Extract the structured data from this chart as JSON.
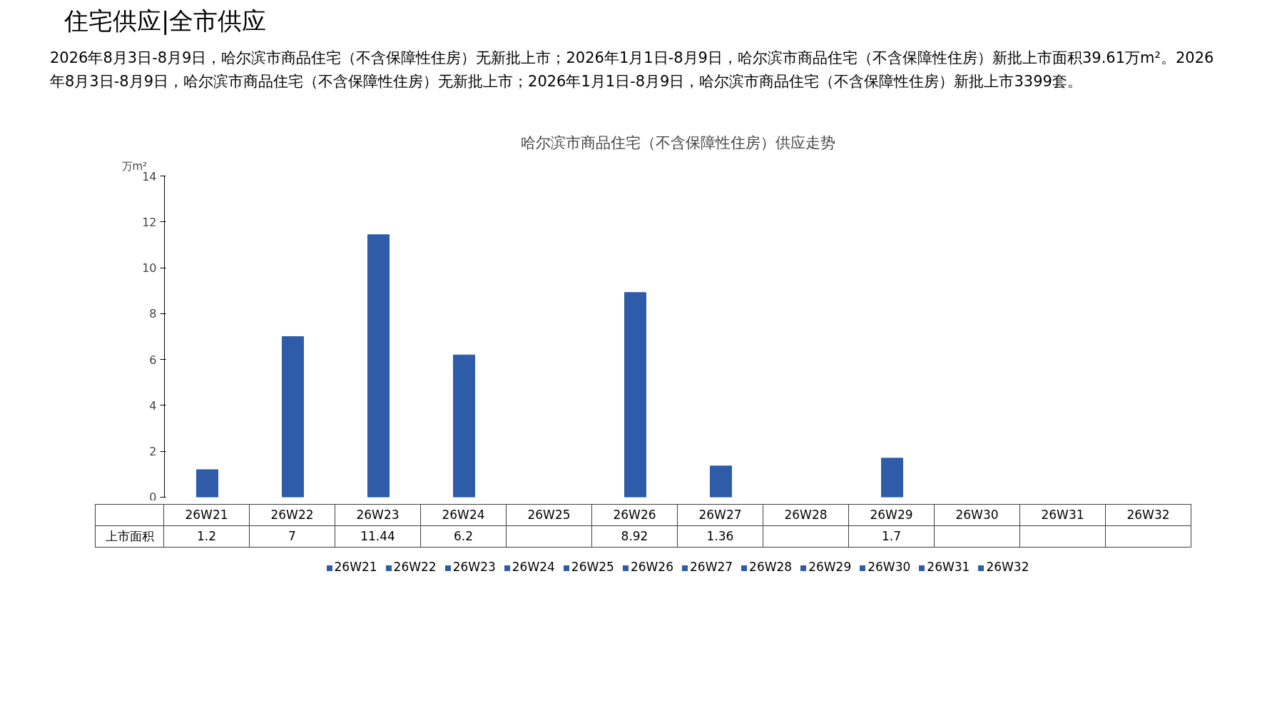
{
  "chart_data": {
    "type": "bar",
    "title": "哈尔滨市商品住宅（不含保障性住房）供应走势",
    "ylabel": "万m²",
    "categories": [
      "26W21",
      "26W22",
      "26W23",
      "26W24",
      "26W25",
      "26W26",
      "26W27",
      "26W28",
      "26W29",
      "26W30",
      "26W31",
      "26W32"
    ],
    "series": [
      {
        "name": "上市面积",
        "color": "#2e5ca8",
        "values": [
          1.2,
          7,
          11.44,
          6.2,
          null,
          8.92,
          1.36,
          null,
          1.7,
          null,
          null,
          null
        ]
      }
    ],
    "ylim": [
      0,
      14
    ],
    "yticks": [
      0,
      2,
      4,
      6,
      8,
      10,
      12,
      14
    ],
    "grid": false,
    "legend": "bottom",
    "data_labels": true,
    "annotations": [
      "住宅供应|全市供应",
      "2026年8月3日-8月9日，哈尔滨市商品住宅（不含保障性住房）无新批上市；2026年1月1日-8月9日，哈尔滨市商品住宅（不含保障性住房）新批上市面积39.61万m²。2026年8月3日-8月9日，哈尔滨市商品住宅（不含保障性住房）无新批上市；2026年1月1日-8月9日，哈尔滨市商品住宅（不含保障性住房）新批上市3399套。"
    ]
  }
}
